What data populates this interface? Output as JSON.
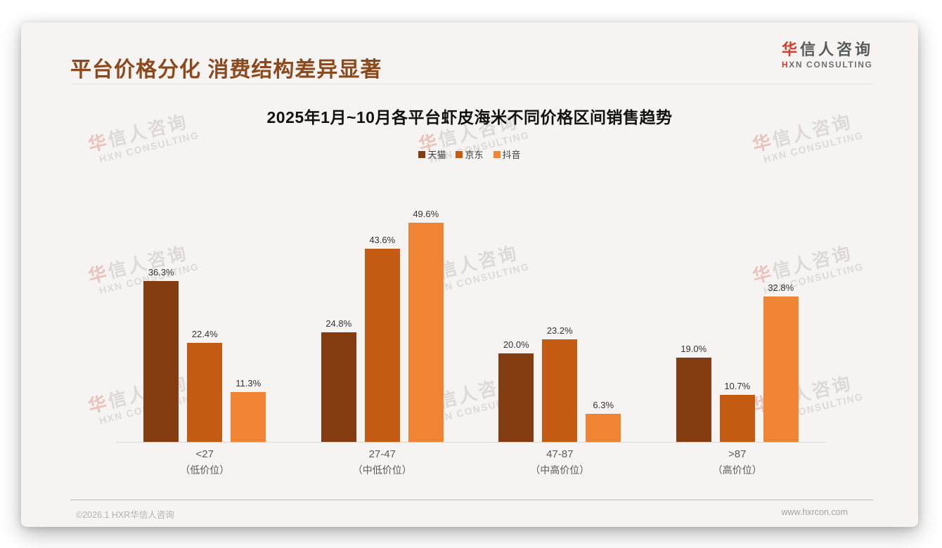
{
  "header": {
    "title": "平台价格分化 消费结构差异显著",
    "logo": {
      "cn_first": "华",
      "cn_rest": "信人咨询",
      "en_first": "H",
      "en_rest": "XN CONSULTING"
    }
  },
  "watermark": {
    "cn_first": "华",
    "cn_rest": "信人咨询",
    "en": "HXN CONSULTING"
  },
  "footer": {
    "left": "©2026.1 HXR华信人咨询",
    "right": "www.hxrcon.com"
  },
  "chart_data": {
    "type": "bar",
    "title": "2025年1月~10月各平台虾皮海米不同价格区间销售趋势",
    "categories": [
      "<27",
      "27-47",
      "47-87",
      ">87"
    ],
    "category_sublabels": [
      "（低价位）",
      "（中低价位）",
      "（中高价位）",
      "（高价位）"
    ],
    "series": [
      {
        "name": "天猫",
        "color": "#833d10",
        "values": [
          36.3,
          24.8,
          20.0,
          19.0
        ]
      },
      {
        "name": "京东",
        "color": "#c45b13",
        "values": [
          22.4,
          43.6,
          23.2,
          10.7
        ]
      },
      {
        "name": "抖音",
        "color": "#ee8434",
        "values": [
          11.3,
          49.6,
          6.3,
          32.8
        ]
      }
    ],
    "value_suffix": "%",
    "ylim": [
      0,
      50
    ],
    "grid": false,
    "legend_position": "top",
    "xlabel": "",
    "ylabel": ""
  }
}
